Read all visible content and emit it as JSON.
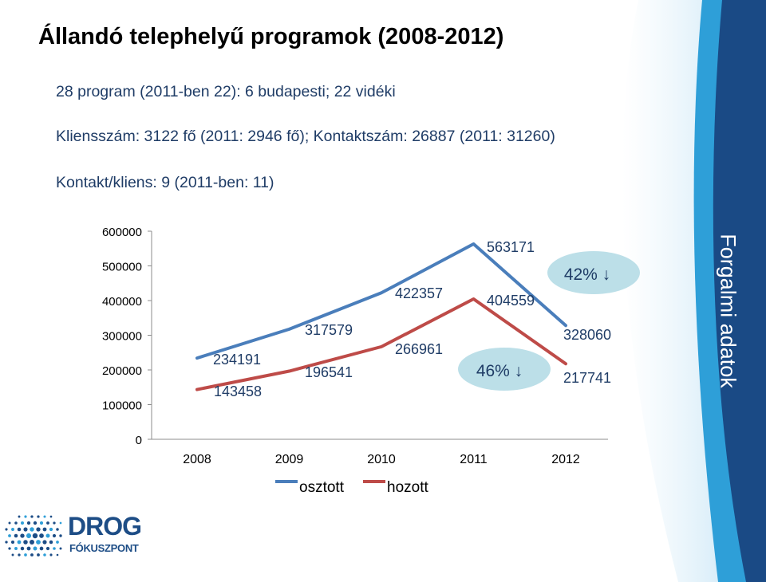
{
  "title": "Állandó telephelyű programok (2008-2012)",
  "bullets": [
    "28 program (2011-ben 22): 6 budapesti; 22 vidéki",
    "Kliensszám: 3122 fő (2011: 2946 fő); Kontaktszám:  26887 (2011: 31260)",
    "Kontakt/kliens: 9 (2011-ben: 11)"
  ],
  "side_label": "Forgalmi adatok",
  "logo": {
    "main": "DROG",
    "sub": "FÓKUSZPONT"
  },
  "colors": {
    "osztott": "#4a7ebb",
    "hozott": "#be4b48",
    "bubble": "#bcdfe8",
    "title_text": "#1f3c66",
    "side_dark": "#1a4a85",
    "side_mid": "#2e9fd8"
  },
  "chart_data": {
    "type": "line",
    "categories": [
      "2008",
      "2009",
      "2010",
      "2011",
      "2012"
    ],
    "series": [
      {
        "name": "osztott",
        "values": [
          234191,
          317579,
          422357,
          563171,
          328060
        ]
      },
      {
        "name": "hozott",
        "values": [
          143458,
          196541,
          266961,
          404559,
          217741
        ]
      }
    ],
    "yticks": [
      "0",
      "100000",
      "200000",
      "300000",
      "400000",
      "500000",
      "600000"
    ],
    "ylim": [
      0,
      600000
    ],
    "legend_position": "bottom",
    "grid": false,
    "annotations": [
      {
        "text": "42% ↓",
        "near_series": "osztott"
      },
      {
        "text": "46% ↓",
        "near_series": "hozott"
      }
    ]
  }
}
